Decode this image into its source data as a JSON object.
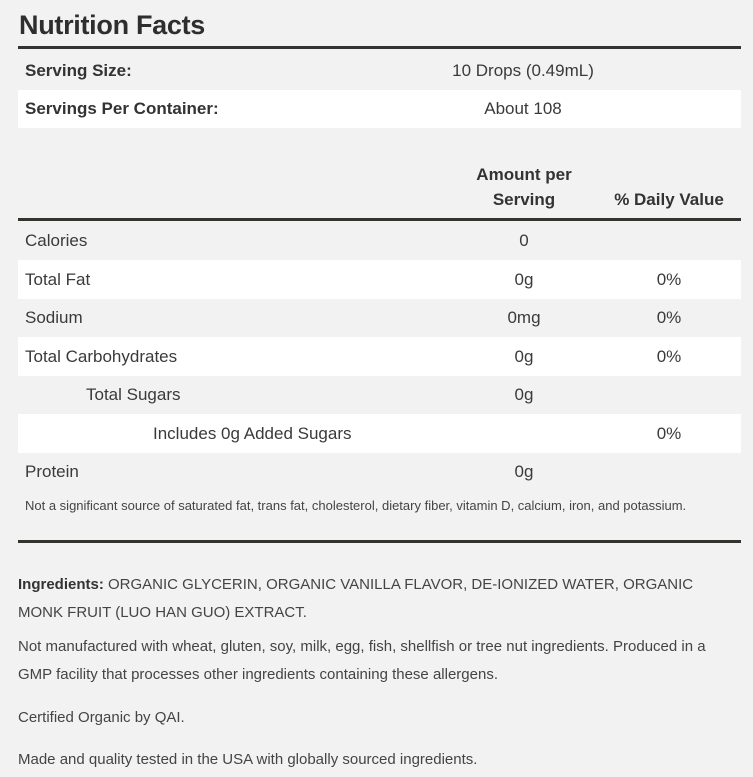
{
  "title": "Nutrition Facts",
  "serving": [
    {
      "label": "Serving Size:",
      "value": "10 Drops (0.49mL)"
    },
    {
      "label": "Servings Per Container:",
      "value": "About 108"
    }
  ],
  "columns": {
    "amount_line1": "Amount per",
    "amount_line2": "Serving",
    "daily": "% Daily Value"
  },
  "nutrients": [
    {
      "label": "Calories",
      "amount": "0",
      "daily": ""
    },
    {
      "label": "Total Fat",
      "amount": "0g",
      "daily": "0%"
    },
    {
      "label": "Sodium",
      "amount": "0mg",
      "daily": "0%"
    },
    {
      "label": "Total Carbohydrates",
      "amount": "0g",
      "daily": "0%"
    },
    {
      "label": "Total Sugars",
      "amount": "0g",
      "daily": ""
    },
    {
      "label": "Includes 0g Added Sugars",
      "amount": "",
      "daily": "0%"
    },
    {
      "label": "Protein",
      "amount": "0g",
      "daily": ""
    }
  ],
  "footnote": "Not a significant source of saturated fat, trans fat, cholesterol, dietary fiber, vitamin D, calcium, iron, and potassium.",
  "ingredients": {
    "label": "Ingredients:",
    "text": " ORGANIC GLYCERIN, ORGANIC VANILLA FLAVOR, DE-IONIZED WATER, ORGANIC MONK FRUIT (LUO HAN GUO) EXTRACT."
  },
  "allergen": "Not manufactured with wheat, gluten, soy, milk, egg, fish, shellfish or tree nut ingredients. Produced in a GMP facility that processes other ingredients containing these allergens.",
  "certified": "Certified Organic by QAI.",
  "made_in": "Made and quality tested in the USA with globally sourced ingredients."
}
